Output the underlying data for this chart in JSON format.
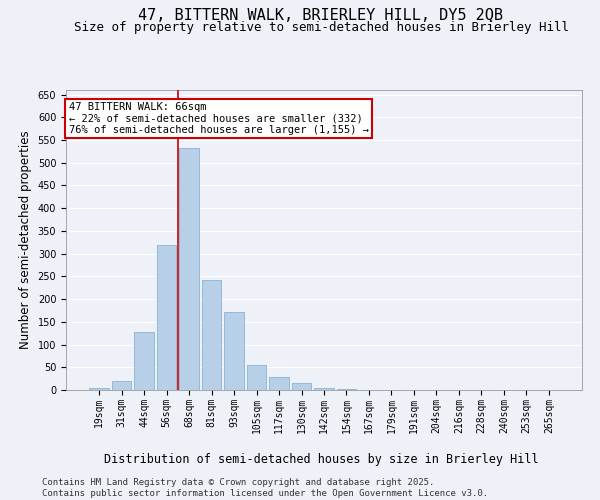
{
  "title": "47, BITTERN WALK, BRIERLEY HILL, DY5 2QB",
  "subtitle": "Size of property relative to semi-detached houses in Brierley Hill",
  "xlabel": "Distribution of semi-detached houses by size in Brierley Hill",
  "ylabel": "Number of semi-detached properties",
  "bins": [
    "19sqm",
    "31sqm",
    "44sqm",
    "56sqm",
    "68sqm",
    "81sqm",
    "93sqm",
    "105sqm",
    "117sqm",
    "130sqm",
    "142sqm",
    "154sqm",
    "167sqm",
    "179sqm",
    "191sqm",
    "204sqm",
    "216sqm",
    "228sqm",
    "240sqm",
    "253sqm",
    "265sqm"
  ],
  "values": [
    4,
    20,
    128,
    318,
    533,
    243,
    172,
    54,
    28,
    15,
    4,
    2,
    1,
    0,
    0,
    1,
    0,
    0,
    0,
    1,
    0
  ],
  "bar_color": "#b8cfe8",
  "bar_edge_color": "#7aaad0",
  "vline_color": "#cc0000",
  "annotation_text": "47 BITTERN WALK: 66sqm\n← 22% of semi-detached houses are smaller (332)\n76% of semi-detached houses are larger (1,155) →",
  "annotation_box_color": "#ffffff",
  "annotation_box_edge_color": "#cc0000",
  "ylim": [
    0,
    660
  ],
  "yticks": [
    0,
    50,
    100,
    150,
    200,
    250,
    300,
    350,
    400,
    450,
    500,
    550,
    600,
    650
  ],
  "background_color": "#eef2f8",
  "grid_color": "#ffffff",
  "footer_text": "Contains HM Land Registry data © Crown copyright and database right 2025.\nContains public sector information licensed under the Open Government Licence v3.0.",
  "title_fontsize": 11,
  "subtitle_fontsize": 9,
  "axis_label_fontsize": 8.5,
  "tick_fontsize": 7,
  "annotation_fontsize": 7.5,
  "footer_fontsize": 6.5
}
